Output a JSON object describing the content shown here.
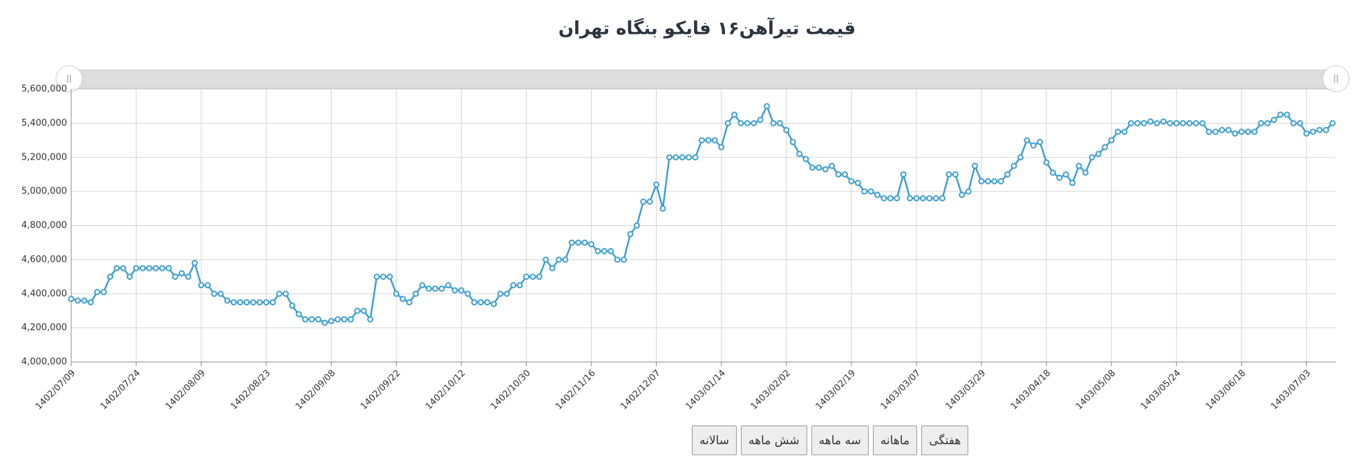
{
  "chart_data": {
    "type": "line",
    "title": "قیمت تیرآهن۱۶ فایکو بنگاه تهران",
    "categories": [
      "1402/07/09",
      null,
      null,
      null,
      null,
      null,
      null,
      null,
      null,
      null,
      "1402/07/24",
      null,
      null,
      null,
      null,
      null,
      null,
      null,
      null,
      null,
      "1402/08/09",
      null,
      null,
      null,
      null,
      null,
      null,
      null,
      null,
      null,
      "1402/08/23",
      null,
      null,
      null,
      null,
      null,
      null,
      null,
      null,
      null,
      "1402/09/08",
      null,
      null,
      null,
      null,
      null,
      null,
      null,
      null,
      null,
      "1402/09/22",
      null,
      null,
      null,
      null,
      null,
      null,
      null,
      null,
      null,
      "1402/10/12",
      null,
      null,
      null,
      null,
      null,
      null,
      null,
      null,
      null,
      "1402/10/30",
      null,
      null,
      null,
      null,
      null,
      null,
      null,
      null,
      null,
      "1402/11/16",
      null,
      null,
      null,
      null,
      null,
      null,
      null,
      null,
      null,
      "1402/12/07",
      null,
      null,
      null,
      null,
      null,
      null,
      null,
      null,
      null,
      "1403/01/14",
      null,
      null,
      null,
      null,
      null,
      null,
      null,
      null,
      null,
      "1403/02/02",
      null,
      null,
      null,
      null,
      null,
      null,
      null,
      null,
      null,
      "1403/02/19",
      null,
      null,
      null,
      null,
      null,
      null,
      null,
      null,
      null,
      "1403/03/07",
      null,
      null,
      null,
      null,
      null,
      null,
      null,
      null,
      null,
      "1403/03/29",
      null,
      null,
      null,
      null,
      null,
      null,
      null,
      null,
      null,
      "1403/04/18",
      null,
      null,
      null,
      null,
      null,
      null,
      null,
      null,
      null,
      "1403/05/08",
      null,
      null,
      null,
      null,
      null,
      null,
      null,
      null,
      null,
      "1403/05/24",
      null,
      null,
      null,
      null,
      null,
      null,
      null,
      null,
      null,
      "1403/06/18",
      null,
      null,
      null,
      null,
      null,
      null,
      null,
      null,
      null,
      "1403/07/03",
      null,
      null,
      null,
      null
    ],
    "values": [
      4370000,
      4360000,
      4360000,
      4350000,
      4410000,
      4410000,
      4500000,
      4550000,
      4550000,
      4500000,
      4550000,
      4550000,
      4550000,
      4550000,
      4550000,
      4550000,
      4500000,
      4520000,
      4500000,
      4580000,
      4450000,
      4450000,
      4400000,
      4400000,
      4360000,
      4350000,
      4350000,
      4350000,
      4350000,
      4350000,
      4350000,
      4350000,
      4400000,
      4400000,
      4330000,
      4280000,
      4250000,
      4250000,
      4250000,
      4230000,
      4240000,
      4250000,
      4250000,
      4250000,
      4300000,
      4300000,
      4250000,
      4500000,
      4500000,
      4500000,
      4400000,
      4370000,
      4350000,
      4400000,
      4450000,
      4430000,
      4430000,
      4430000,
      4450000,
      4420000,
      4420000,
      4400000,
      4350000,
      4350000,
      4350000,
      4340000,
      4400000,
      4400000,
      4450000,
      4450000,
      4500000,
      4500000,
      4500000,
      4600000,
      4550000,
      4600000,
      4600000,
      4700000,
      4700000,
      4700000,
      4690000,
      4650000,
      4650000,
      4650000,
      4600000,
      4600000,
      4750000,
      4800000,
      4940000,
      4940000,
      5040000,
      4900000,
      5200000,
      5200000,
      5200000,
      5200000,
      5200000,
      5300000,
      5300000,
      5300000,
      5260000,
      5400000,
      5450000,
      5400000,
      5400000,
      5400000,
      5420000,
      5500000,
      5400000,
      5400000,
      5360000,
      5290000,
      5220000,
      5190000,
      5140000,
      5140000,
      5130000,
      5150000,
      5100000,
      5100000,
      5060000,
      5050000,
      5000000,
      5000000,
      4980000,
      4960000,
      4960000,
      4960000,
      5100000,
      4960000,
      4960000,
      4960000,
      4960000,
      4960000,
      4960000,
      5100000,
      5100000,
      4980000,
      5000000,
      5150000,
      5060000,
      5060000,
      5060000,
      5060000,
      5100000,
      5150000,
      5200000,
      5300000,
      5270000,
      5290000,
      5170000,
      5110000,
      5080000,
      5100000,
      5050000,
      5150000,
      5110000,
      5200000,
      5220000,
      5260000,
      5300000,
      5350000,
      5350000,
      5400000,
      5400000,
      5400000,
      5410000,
      5400000,
      5410000,
      5400000,
      5400000,
      5400000,
      5400000,
      5400000,
      5400000,
      5350000,
      5350000,
      5360000,
      5360000,
      5340000,
      5350000,
      5350000,
      5350000,
      5400000,
      5400000,
      5420000,
      5450000,
      5450000,
      5400000,
      5400000,
      5340000,
      5350000,
      5360000,
      5360000,
      5400000
    ],
    "color": "#3d9fd2",
    "ylim": [
      4000000,
      5600000
    ],
    "yticks": [
      {
        "value": 4000000,
        "label": "4,000,000"
      },
      {
        "value": 4200000,
        "label": "4,200,000"
      },
      {
        "value": 4400000,
        "label": "4,400,000"
      },
      {
        "value": 4600000,
        "label": "4,600,000"
      },
      {
        "value": 4800000,
        "label": "4,800,000"
      },
      {
        "value": 5000000,
        "label": "5,000,000"
      },
      {
        "value": 5200000,
        "label": "5,200,000"
      },
      {
        "value": 5400000,
        "label": "5,400,000"
      },
      {
        "value": 5600000,
        "label": "5,600,000"
      }
    ],
    "grid": true
  },
  "controls": [
    "سالانه",
    "شش ماهه",
    "سه ماهه",
    "ماهانه",
    "هفتگی"
  ]
}
